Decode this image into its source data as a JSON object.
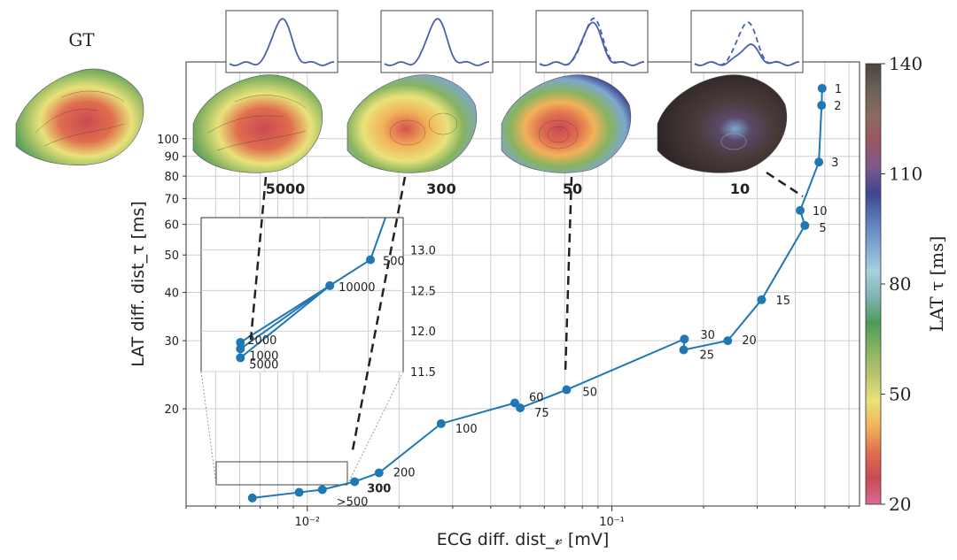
{
  "gt_label": "GT",
  "colorbar": {
    "label": "LAT τ [ms]",
    "ticks": [
      "140",
      "110",
      "80",
      "50",
      "20"
    ],
    "range": [
      20,
      140
    ],
    "colors": [
      "#d86b98",
      "#c94a52",
      "#e06e4e",
      "#f2b25a",
      "#e9e27a",
      "#bcc36e",
      "#86b360",
      "#4f9a5a",
      "#7fb3b0",
      "#a9cfe0",
      "#7fa6cf",
      "#5a7ab8",
      "#3d4690",
      "#7b5a8c",
      "#9a5563",
      "#8b6b5f",
      "#6b6258",
      "#4a4540"
    ]
  },
  "chart_data": {
    "type": "line",
    "xlabel": "ECG diff. dist_𝓋 [mV]",
    "ylabel": "LAT diff. dist_τ [ms]",
    "x_scale": "log",
    "y_scale": "log",
    "xlim": [
      0.004,
      0.65
    ],
    "ylim": [
      11.2,
      158
    ],
    "x_ticks": [
      {
        "v": 0.01,
        "label": "10⁻²"
      },
      {
        "v": 0.1,
        "label": "10⁻¹"
      }
    ],
    "y_ticks": [
      {
        "v": 20,
        "label": "20"
      },
      {
        "v": 30,
        "label": "30"
      },
      {
        "v": 40,
        "label": "40"
      },
      {
        "v": 50,
        "label": "50"
      },
      {
        "v": 60,
        "label": "60"
      },
      {
        "v": 70,
        "label": "70"
      },
      {
        "v": 80,
        "label": "80"
      },
      {
        "v": 90,
        "label": "90"
      },
      {
        "v": 100,
        "label": "100"
      }
    ],
    "grid": true,
    "color": "#1f77b4",
    "points": [
      {
        "x": 0.0066,
        "y": 11.75,
        "label": ""
      },
      {
        "x": 0.0094,
        "y": 12.15,
        "label": ""
      },
      {
        "x": 0.0112,
        "y": 12.35,
        "label": ">500"
      },
      {
        "x": 0.0143,
        "y": 12.95,
        "label": "300",
        "bold": true
      },
      {
        "x": 0.0172,
        "y": 13.65,
        "label": "200"
      },
      {
        "x": 0.0275,
        "y": 18.3,
        "label": "100"
      },
      {
        "x": 0.048,
        "y": 20.7,
        "label": "60"
      },
      {
        "x": 0.05,
        "y": 20.1,
        "label": "75"
      },
      {
        "x": 0.071,
        "y": 22.4,
        "label": "50"
      },
      {
        "x": 0.173,
        "y": 30.3,
        "label": "30"
      },
      {
        "x": 0.172,
        "y": 28.4,
        "label": "25"
      },
      {
        "x": 0.24,
        "y": 30.0,
        "label": "20"
      },
      {
        "x": 0.31,
        "y": 38.3,
        "label": "15"
      },
      {
        "x": 0.43,
        "y": 59.6,
        "label": "5"
      },
      {
        "x": 0.415,
        "y": 65.2,
        "label": "10"
      },
      {
        "x": 0.478,
        "y": 87.0,
        "label": "3"
      },
      {
        "x": 0.488,
        "y": 122.0,
        "label": "2"
      },
      {
        "x": 0.49,
        "y": 135.0,
        "label": "1"
      }
    ],
    "inset": {
      "xlim": [
        0.006,
        0.0098
      ],
      "ylim": [
        11.5,
        13.4
      ],
      "y_ticks": [
        "11.5",
        "12.0",
        "12.5",
        "13.0"
      ],
      "points": [
        {
          "x": 0.0066,
          "y": 11.86,
          "label": "2000"
        },
        {
          "x": 0.0066,
          "y": 11.78,
          "label": "1000"
        },
        {
          "x": 0.0066,
          "y": 11.67,
          "label": "5000"
        },
        {
          "x": 0.0082,
          "y": 12.56,
          "label": "10000"
        },
        {
          "x": 0.00905,
          "y": 12.88,
          "label": "500"
        }
      ]
    },
    "annotations": [
      {
        "label": "5000",
        "trace": "solid"
      },
      {
        "label": "300",
        "trace": "solid"
      },
      {
        "label": "50",
        "trace": "slight-dash"
      },
      {
        "label": "10",
        "trace": "dashed"
      }
    ]
  }
}
